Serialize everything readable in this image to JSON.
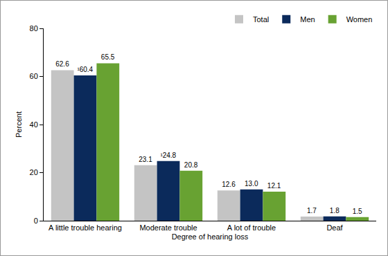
{
  "chart_data": {
    "type": "bar",
    "x_label": "Degree of hearing loss",
    "y_label": "Percent",
    "categories": [
      "A little trouble hearing",
      "Moderate trouble",
      "A lot of trouble",
      "Deaf"
    ],
    "series": [
      {
        "name": "Total",
        "color": "#c4c4c4",
        "values": [
          62.6,
          23.1,
          12.6,
          1.7
        ]
      },
      {
        "name": "Men",
        "color": "#0b2a5b",
        "values": [
          60.4,
          24.8,
          13.0,
          1.8
        ],
        "value_labels": [
          "¹60.4",
          "¹24.8",
          "13.0",
          "1.8"
        ]
      },
      {
        "name": "Women",
        "color": "#68a232",
        "values": [
          65.5,
          20.8,
          12.1,
          1.5
        ]
      }
    ],
    "ylim": [
      0,
      80
    ],
    "yticks": [
      0,
      20,
      40,
      60,
      80
    ],
    "grid": false,
    "legend": "top right",
    "data_labels": true
  }
}
